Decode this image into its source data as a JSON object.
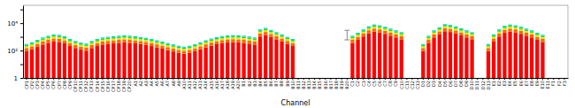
{
  "chart_data": {
    "type": "bar",
    "stacked": true,
    "log": "y",
    "grid": false,
    "xlabel": "Channel",
    "categories": [
      "CP1",
      "CP2",
      "CP3",
      "CP4",
      "CP5",
      "CP6",
      "CP7",
      "CP8",
      "CP9",
      "CP10",
      "CP11",
      "CP12",
      "CP13",
      "CP14",
      "CP15",
      "CP16",
      "CP17",
      "CP18",
      "CP19",
      "CP20",
      "A1",
      "A2",
      "A3",
      "A4",
      "A5",
      "A6",
      "A7",
      "A8",
      "A9",
      "A10",
      "A11",
      "A12",
      "A13",
      "A14",
      "A15",
      "A16",
      "A17",
      "A18",
      "A19",
      "A20",
      "B1",
      "B2",
      "B3",
      "B4",
      "B5",
      "B6",
      "B7",
      "B8",
      "B9",
      "B10",
      "B11",
      "B12",
      "B13",
      "B14",
      "B15",
      "B16",
      "B17",
      "B18",
      "B19",
      "B20",
      "C1",
      "C2",
      "C3",
      "C4",
      "C5",
      "C6",
      "C7",
      "C8",
      "C9",
      "C10",
      "C11",
      "C12",
      "C13",
      "D1",
      "D2",
      "D3",
      "D4",
      "D5",
      "D6",
      "D7",
      "D8",
      "D9",
      "D10",
      "D11",
      "D12",
      "D13",
      "E1",
      "E2",
      "E3",
      "E4",
      "E5",
      "E6",
      "E7",
      "E8",
      "E9",
      "E10",
      "E11",
      "F1",
      "F2",
      "F3"
    ],
    "series": [
      {
        "color": "#FF0000",
        "values": [
          90,
          120,
          180,
          270,
          360,
          450,
          420,
          330,
          210,
          150,
          114,
          96,
          150,
          210,
          270,
          300,
          330,
          360,
          390,
          360,
          330,
          294,
          255,
          210,
          168,
          135,
          105,
          84,
          66,
          57,
          66,
          87,
          120,
          168,
          225,
          285,
          345,
          390,
          405,
          390,
          360,
          315,
          270,
          1050,
          1350,
          960,
          660,
          450,
          300,
          210,
          null,
          null,
          null,
          null,
          null,
          null,
          null,
          null,
          null,
          null,
          360,
          600,
          1050,
          1800,
          2400,
          2100,
          1650,
          1200,
          900,
          660,
          null,
          null,
          null,
          90,
          360,
          900,
          1500,
          2550,
          2250,
          1740,
          1260,
          900,
          660,
          null,
          null,
          90,
          450,
          1050,
          1950,
          2400,
          2100,
          1650,
          1200,
          900,
          600,
          420,
          null,
          null,
          null,
          null
        ]
      },
      {
        "color": "#FF6600",
        "values": [
          60,
          80,
          120,
          180,
          240,
          300,
          280,
          220,
          140,
          100,
          76,
          64,
          100,
          140,
          180,
          200,
          220,
          240,
          260,
          240,
          220,
          196,
          170,
          140,
          112,
          90,
          70,
          56,
          44,
          38,
          44,
          58,
          80,
          112,
          150,
          190,
          230,
          260,
          270,
          260,
          240,
          210,
          180,
          700,
          900,
          640,
          440,
          300,
          200,
          140,
          null,
          null,
          null,
          null,
          null,
          null,
          null,
          null,
          null,
          null,
          240,
          400,
          700,
          1200,
          1600,
          1400,
          1100,
          800,
          600,
          440,
          null,
          null,
          null,
          60,
          240,
          600,
          1000,
          1700,
          1500,
          1160,
          840,
          600,
          440,
          null,
          null,
          60,
          300,
          700,
          1300,
          1600,
          1400,
          1100,
          800,
          600,
          400,
          280,
          null,
          null,
          null,
          null
        ]
      },
      {
        "color": "#FFDD00",
        "values": [
          54,
          72,
          108,
          162,
          216,
          270,
          252,
          198,
          126,
          90,
          68.4,
          57.6,
          90,
          126,
          162,
          180,
          198,
          216,
          234,
          216,
          198,
          176.4,
          153,
          126,
          100.8,
          81,
          63,
          50.4,
          39.6,
          34.2,
          39.6,
          52.2,
          72,
          100.8,
          135,
          171,
          207,
          234,
          243,
          234,
          216,
          189,
          162,
          630,
          810,
          576,
          396,
          270,
          180,
          126,
          null,
          null,
          null,
          null,
          null,
          null,
          null,
          null,
          null,
          null,
          216,
          360,
          630,
          1080,
          1440,
          1260,
          990,
          720,
          540,
          396,
          null,
          null,
          null,
          54,
          216,
          540,
          900,
          1530,
          1350,
          1044,
          756,
          540,
          396,
          null,
          null,
          54,
          270,
          630,
          1170,
          1440,
          1260,
          990,
          720,
          540,
          360,
          252,
          null,
          null,
          null,
          null
        ]
      },
      {
        "color": "#00EE00",
        "values": [
          51,
          68,
          102,
          153,
          204,
          255,
          238,
          187,
          119,
          85,
          64.6,
          54.4,
          85,
          119,
          153,
          170,
          187,
          204,
          221,
          204,
          187,
          166.6,
          144.5,
          119,
          95.2,
          76.5,
          59.5,
          47.6,
          37.4,
          32.3,
          37.4,
          49.3,
          68,
          95.2,
          127.5,
          161.5,
          195.5,
          221,
          229.5,
          221,
          204,
          178.5,
          153,
          595,
          765,
          544,
          374,
          255,
          170,
          119,
          null,
          null,
          null,
          null,
          null,
          null,
          null,
          null,
          null,
          null,
          204,
          340,
          595,
          1020,
          1360,
          1190,
          935,
          680,
          510,
          374,
          null,
          null,
          null,
          51,
          204,
          510,
          850,
          1445,
          1275,
          986,
          714,
          510,
          374,
          null,
          null,
          51,
          255,
          595,
          1105,
          1360,
          1190,
          935,
          680,
          510,
          340,
          238,
          null,
          null,
          null,
          null
        ]
      },
      {
        "color": "#00CCFF",
        "values": [
          45,
          60,
          90,
          135,
          180,
          225,
          210,
          165,
          105,
          75,
          57,
          48,
          75,
          105,
          135,
          150,
          165,
          180,
          195,
          180,
          165,
          147,
          127.5,
          105,
          84,
          67.5,
          52.5,
          42,
          33,
          28.5,
          33,
          43.5,
          60,
          84,
          112.5,
          142.5,
          172.5,
          195,
          202.5,
          195,
          180,
          157.5,
          135,
          525,
          675,
          480,
          330,
          225,
          150,
          105,
          null,
          null,
          null,
          null,
          null,
          null,
          null,
          null,
          null,
          null,
          180,
          300,
          525,
          900,
          1200,
          1050,
          825,
          600,
          450,
          330,
          null,
          null,
          null,
          45,
          180,
          450,
          750,
          1275,
          1125,
          870,
          630,
          450,
          330,
          null,
          null,
          45,
          225,
          525,
          975,
          1200,
          1050,
          825,
          600,
          450,
          300,
          210,
          null,
          null,
          null,
          null
        ]
      }
    ],
    "error_bars": [
      {
        "category": "B20",
        "value": 1200,
        "error_low": 600,
        "error_high": 1800
      }
    ],
    "ylim": [
      1,
      200000
    ],
    "yticks": [
      1,
      {
        "value": 10,
        "label": null
      },
      {
        "value": 100,
        "label": "10²"
      },
      {
        "value": 1000,
        "label": null
      },
      {
        "value": 10000,
        "label": "10⁴"
      },
      {
        "value": 100000,
        "label": null
      }
    ]
  }
}
